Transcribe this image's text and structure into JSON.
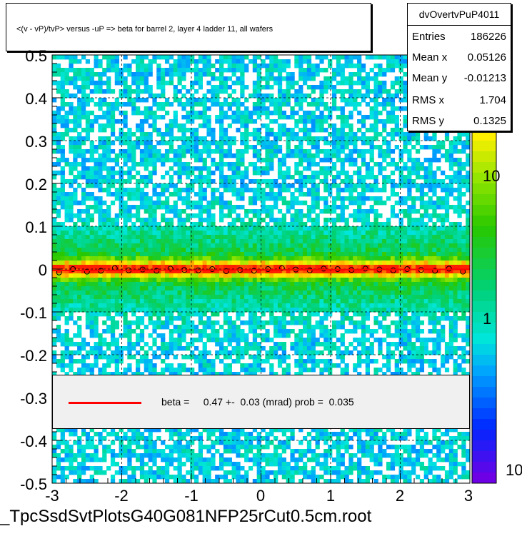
{
  "chart_data": {
    "type": "heatmap",
    "title": "<(v - vP)/tvP> versus  -uP => beta for barrel 2, layer 4 ladder 11, all wafers",
    "xlim": [
      -3,
      3
    ],
    "ylim": [
      -0.5,
      0.5
    ],
    "x_ticks": [
      "-3",
      "-2",
      "-1",
      "0",
      "1",
      "2",
      "3"
    ],
    "y_ticks": [
      "-0.5",
      "-0.4",
      "-0.3",
      "-0.2",
      "-0.1",
      "0",
      "0.1",
      "0.2",
      "0.3",
      "0.4",
      "0.5"
    ],
    "z_ticks": [
      "10",
      "1",
      "10"
    ],
    "z_scale": "log",
    "grid": true,
    "profile": {
      "x": [
        -2.9,
        -2.7,
        -2.5,
        -2.3,
        -2.1,
        -1.9,
        -1.7,
        -1.5,
        -1.3,
        -1.1,
        -0.9,
        -0.7,
        -0.5,
        -0.3,
        -0.1,
        0.1,
        0.3,
        0.5,
        0.7,
        0.9,
        1.1,
        1.3,
        1.5,
        1.7,
        1.9,
        2.1,
        2.3,
        2.5,
        2.7,
        2.9
      ],
      "y": [
        -0.008,
        0.0,
        -0.006,
        -0.004,
        0.002,
        -0.003,
        -0.001,
        -0.004,
        0.001,
        -0.002,
        -0.003,
        0.0,
        -0.005,
        -0.002,
        -0.004,
        0.0,
        0.002,
        -0.001,
        -0.003,
        0.001,
        0.0,
        -0.002,
        0.001,
        -0.001,
        -0.003,
        0.0,
        -0.002,
        -0.004,
        0.001,
        -0.006
      ]
    },
    "fit": {
      "slope_mrad": 0.47,
      "intercept": -0.002
    }
  },
  "stats": {
    "name": "dvOvertvPuP4011",
    "rows": [
      {
        "label": "Entries",
        "value": "186226"
      },
      {
        "label": "Mean x",
        "value": "0.05126"
      },
      {
        "label": "Mean y",
        "value": "-0.01213"
      },
      {
        "label": "RMS x",
        "value": "1.704"
      },
      {
        "label": "RMS y",
        "value": "0.1325"
      }
    ]
  },
  "legend": {
    "text": "beta =     0.47 +-  0.03 (mrad) prob =  0.035",
    "color": "#ff0000"
  },
  "footer": "_TpcSsdSvtPlotsG40G081NFP25rCut0.5cm.root"
}
